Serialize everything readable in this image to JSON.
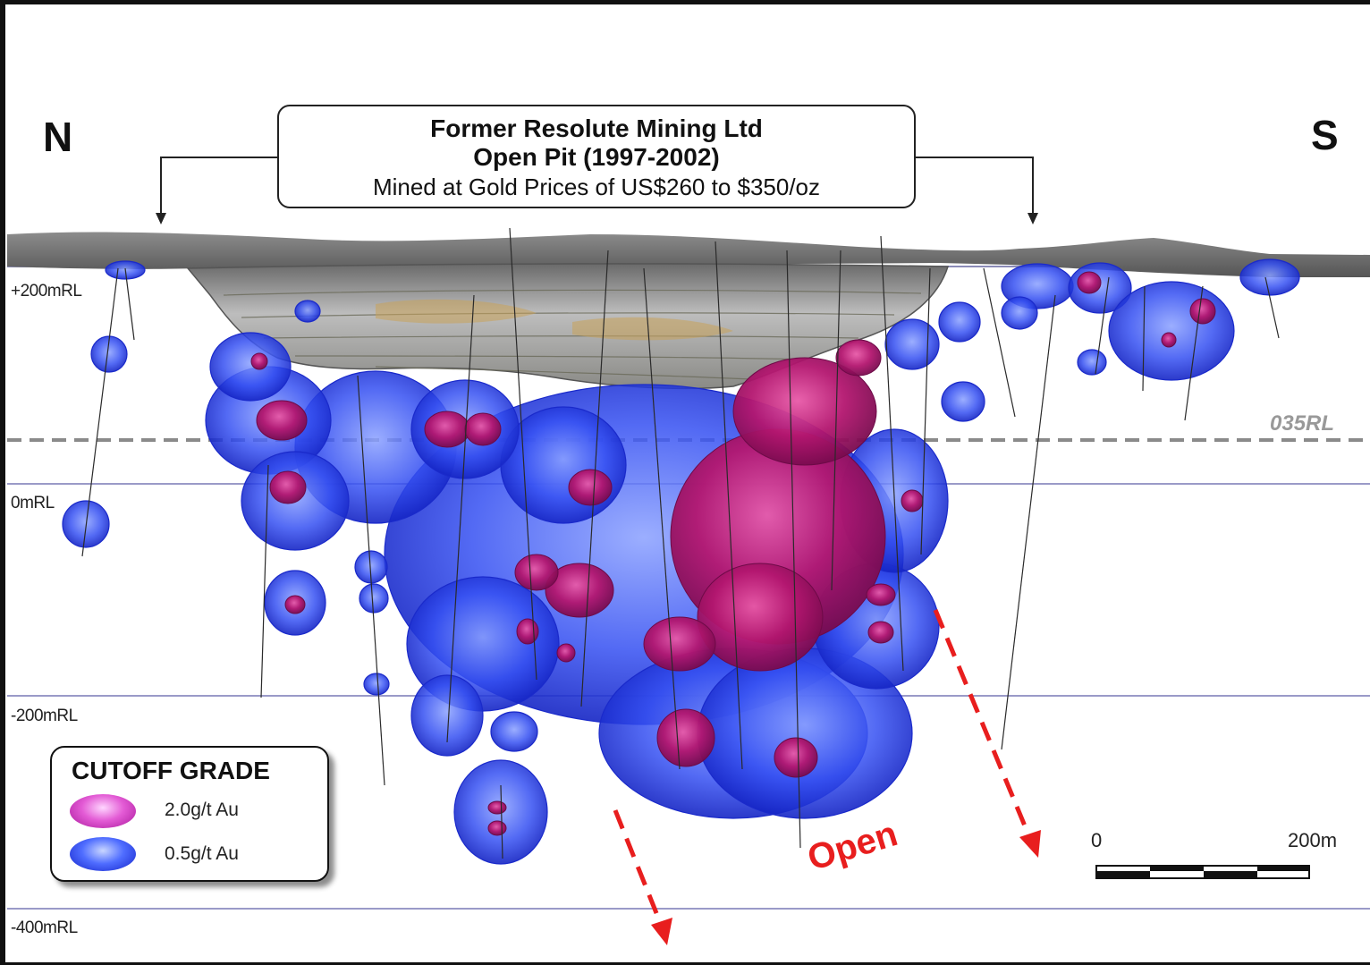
{
  "directions": {
    "north": "N",
    "south": "S"
  },
  "pit_callout": {
    "line1": "Former Resolute Mining Ltd",
    "line2": "Open Pit (1997-2002)",
    "line3": "Mined at Gold Prices of US$260 to $350/oz"
  },
  "rl_levels": {
    "plus200": "+200mRL",
    "zero": "0mRL",
    "minus200": "-200mRL",
    "minus400": "-400mRL",
    "rl035": "035RL"
  },
  "legend": {
    "title": "CUTOFF GRADE",
    "items": [
      {
        "label": "2.0g/t Au",
        "color": "#c21ea8"
      },
      {
        "label": "0.5g/t Au",
        "color": "#2f47f0"
      }
    ]
  },
  "open_label": "Open",
  "scale_bar": {
    "start_label": "0",
    "end_label": "200m"
  },
  "colors": {
    "high_grade": "#b0127e",
    "low_grade": "#2840f0",
    "open_arrow": "#e81e1e",
    "rl_line": "#9a9ac8",
    "rl035_line": "#8a8a8a"
  }
}
